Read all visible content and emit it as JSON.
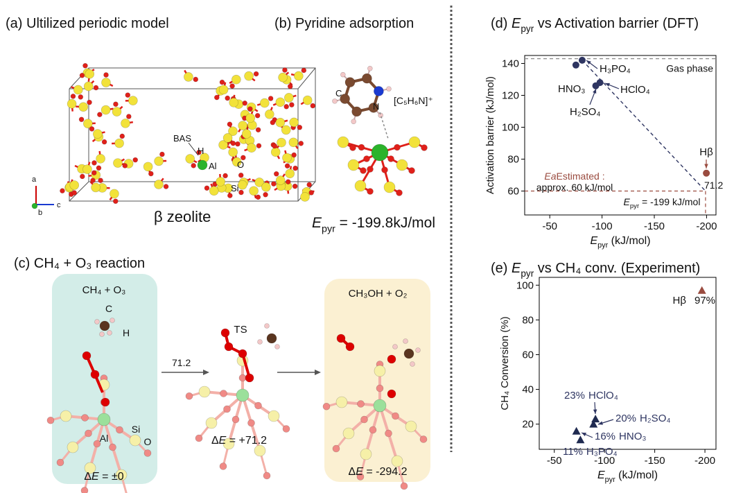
{
  "panel_a": {
    "title": "(a) Ultilized periodic model",
    "label": "β zeolite",
    "annotations": [
      "BAS",
      "H",
      "Al",
      "O",
      "Si"
    ],
    "axes": [
      "a",
      "b",
      "c"
    ]
  },
  "panel_b": {
    "title": "(b) Pyridine adsorption",
    "ion": "[C₅H₆N]⁺",
    "atoms": [
      "C",
      "N"
    ],
    "energy": {
      "symbol": "E",
      "sub": "pyr",
      "text": " = -199.8kJ/mol"
    }
  },
  "panel_c": {
    "title": "(c) CH₄ + O₃ reaction",
    "barrier": 71.2,
    "states": [
      {
        "label": "CH₄ + O₃",
        "atoms": [
          "C",
          "H",
          "Al",
          "Si",
          "O"
        ],
        "energy": {
          "prefix": "Δ",
          "symbol": "E",
          "text": " = ±0"
        }
      },
      {
        "label": "TS",
        "energy": {
          "prefix": "Δ",
          "symbol": "E",
          "text": " = +71.2"
        }
      },
      {
        "label": "CH₃OH + O₂",
        "energy": {
          "prefix": "Δ",
          "symbol": "E",
          "text": " = -294.2"
        }
      }
    ]
  },
  "chart_data": [
    {
      "type": "scatter",
      "title": {
        "prefix": "(d) ",
        "symbol": "E",
        "sub": "pyr",
        "text": " vs Activation barrier (DFT)"
      },
      "x_label": {
        "symbol": "E",
        "sub": "pyr",
        "text": " (kJ/mol)"
      },
      "y_label": "Activation barrier (kJ/mol)",
      "xlim": [
        -26,
        -209
      ],
      "ylim": [
        45,
        145
      ],
      "xticks": [
        -50,
        -100,
        -150,
        -200
      ],
      "yticks": [
        60,
        80,
        100,
        120,
        140
      ],
      "labels": [
        "H₃PO₄",
        "HNO₃",
        "HClO₄",
        "H₂SO₄",
        "Hβ"
      ],
      "x": [
        -81,
        -75,
        -98,
        -94,
        -199.8
      ],
      "values": [
        142,
        139,
        128,
        126,
        71.2
      ],
      "colors": [
        "#2e3561",
        "#2e3561",
        "#2e3561",
        "#2e3561",
        "#9a4b3f"
      ],
      "reference": {
        "gas_phase": 143,
        "gas_phase_label": "Gas phase",
        "estimated_barrier": 60,
        "estimated_epyr": -199,
        "estimated_label": {
          "text": "Estimated ",
          "symbol": "Ea",
          "suffix": ":",
          "line2": "approx. 60 kJ/mol"
        },
        "epyr_label": {
          "symbol": "E",
          "sub": "pyr",
          "text": " = -199 kJ/mol"
        }
      }
    },
    {
      "type": "scatter",
      "marker": "triangle",
      "title": {
        "prefix": "(e) ",
        "symbol": "E",
        "sub": "pyr",
        "text": " vs CH₄ conv. (Experiment)"
      },
      "x_label": {
        "symbol": "E",
        "sub": "pyr",
        "text": " (kJ/mol)"
      },
      "y_label": "CH₄ Conversion (%)",
      "xlim": [
        -35,
        -211
      ],
      "ylim": [
        5.5,
        104.5
      ],
      "xticks": [
        -50,
        -100,
        -150,
        -200
      ],
      "yticks": [
        20,
        40,
        60,
        80,
        100
      ],
      "labels": [
        "Hβ",
        "HClO₄",
        "H₂SO₄",
        "HNO₃",
        "H₃PO₄"
      ],
      "x": [
        -197,
        -91,
        -89,
        -72,
        -76
      ],
      "values": [
        97,
        23,
        20,
        16,
        11
      ],
      "value_labels": [
        "97%",
        "23%",
        "20%",
        "16%",
        "11%"
      ],
      "colors": [
        "#9a4b3f",
        "#1f2a50",
        "#1f2a50",
        "#1f2a50",
        "#1f2a50"
      ]
    }
  ]
}
